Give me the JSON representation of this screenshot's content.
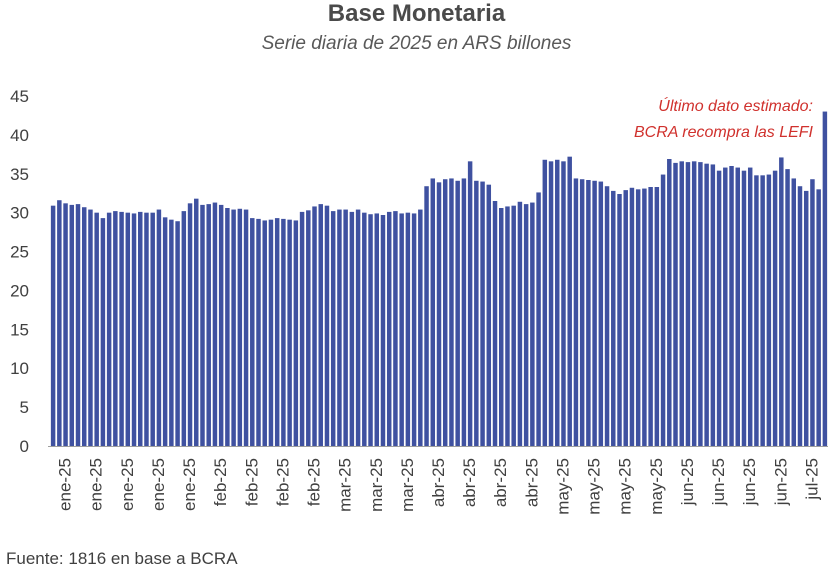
{
  "title": "Base Monetaria",
  "subtitle": "Serie diaria de 2025 en ARS billones",
  "note_lines": [
    "Último dato estimado:",
    "BCRA recompra las LEFI"
  ],
  "source": "Fuente: 1816 en base a BCRA",
  "colors": {
    "bar": "#3f51a0",
    "note": "#d0312d",
    "axis": "#9e9e9e"
  },
  "chart_data": {
    "type": "bar",
    "title": "Base Monetaria",
    "subtitle": "Serie diaria de 2025 en ARS billones",
    "xlabel": "",
    "ylabel": "",
    "ylim": [
      0,
      45
    ],
    "y_ticks": [
      0,
      5,
      10,
      15,
      20,
      25,
      30,
      35,
      40,
      45
    ],
    "grid": false,
    "x_tick_labels": [
      "ene-25",
      "ene-25",
      "ene-25",
      "ene-25",
      "ene-25",
      "feb-25",
      "feb-25",
      "feb-25",
      "feb-25",
      "mar-25",
      "mar-25",
      "mar-25",
      "abr-25",
      "abr-25",
      "abr-25",
      "abr-25",
      "may-25",
      "may-25",
      "may-25",
      "may-25",
      "jun-25",
      "jun-25",
      "jun-25",
      "jun-25",
      "jul-25"
    ],
    "annotation": "Último dato estimado: BCRA recompra las LEFI",
    "values": [
      30.9,
      31.6,
      31.2,
      31.0,
      31.1,
      30.7,
      30.4,
      30.0,
      29.3,
      30.0,
      30.2,
      30.1,
      30.0,
      29.9,
      30.1,
      30.0,
      30.0,
      30.4,
      29.4,
      29.1,
      28.9,
      30.2,
      31.2,
      31.8,
      31.0,
      31.1,
      31.3,
      31.0,
      30.6,
      30.4,
      30.5,
      30.4,
      29.3,
      29.2,
      29.0,
      29.1,
      29.3,
      29.2,
      29.1,
      29.0,
      30.1,
      30.3,
      30.8,
      31.1,
      30.9,
      30.2,
      30.4,
      30.4,
      30.1,
      30.4,
      30.0,
      29.8,
      29.9,
      29.7,
      30.1,
      30.2,
      29.9,
      30.0,
      29.9,
      30.4,
      33.4,
      34.4,
      33.9,
      34.3,
      34.4,
      34.1,
      34.4,
      36.6,
      34.1,
      34.0,
      33.6,
      31.5,
      30.6,
      30.8,
      30.9,
      31.4,
      31.1,
      31.3,
      32.6,
      36.8,
      36.6,
      36.8,
      36.6,
      37.2,
      34.4,
      34.3,
      34.2,
      34.1,
      34.0,
      33.4,
      32.8,
      32.4,
      32.9,
      33.2,
      33.0,
      33.1,
      33.3,
      33.3,
      34.9,
      36.9,
      36.4,
      36.6,
      36.5,
      36.6,
      36.5,
      36.3,
      36.2,
      35.4,
      35.8,
      36.0,
      35.8,
      35.4,
      35.8,
      34.8,
      34.8,
      34.9,
      35.4,
      37.1,
      35.6,
      34.4,
      33.4,
      32.8,
      34.3,
      33.0,
      43.0
    ]
  }
}
